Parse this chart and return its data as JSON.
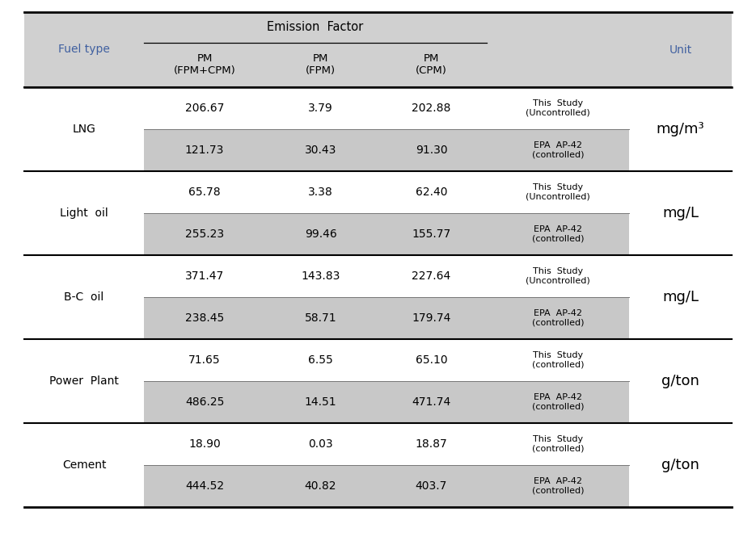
{
  "title": "Emission Factor",
  "rows": [
    {
      "fuel": "LNG",
      "unit": "mg/m³",
      "row1": [
        "206.67",
        "3.79",
        "202.88",
        "This  Study\n(Uncontrolled)"
      ],
      "row2": [
        "121.73",
        "30.43",
        "91.30",
        "EPA  AP-42\n(controlled)"
      ]
    },
    {
      "fuel": "Light  oil",
      "unit": "mg/L",
      "row1": [
        "65.78",
        "3.38",
        "62.40",
        "This  Study\n(Uncontrolled)"
      ],
      "row2": [
        "255.23",
        "99.46",
        "155.77",
        "EPA  AP-42\n(controlled)"
      ]
    },
    {
      "fuel": "B-C  oil",
      "unit": "mg/L",
      "row1": [
        "371.47",
        "143.83",
        "227.64",
        "This  Study\n(Uncontrolled)"
      ],
      "row2": [
        "238.45",
        "58.71",
        "179.74",
        "EPA  AP-42\n(controlled)"
      ]
    },
    {
      "fuel": "Power  Plant",
      "unit": "g/ton",
      "row1": [
        "71.65",
        "6.55",
        "65.10",
        "This  Study\n(controlled)"
      ],
      "row2": [
        "486.25",
        "14.51",
        "471.74",
        "EPA  AP-42\n(controlled)"
      ]
    },
    {
      "fuel": "Cement",
      "unit": "g/ton",
      "row1": [
        "18.90",
        "0.03",
        "18.87",
        "This  Study\n(controlled)"
      ],
      "row2": [
        "444.52",
        "40.82",
        "403.7",
        "EPA  AP-42\n(controlled)"
      ]
    }
  ],
  "header_bg": "#d0d0d0",
  "shaded_bg": "#c8c8c8",
  "white_bg": "#ffffff",
  "text_color": "#000000",
  "blue_color": "#4060a0",
  "unit_color": "#000000",
  "border_thick": 1.8,
  "border_thin": 0.8,
  "data_fs": 10,
  "header_fs": 10,
  "source_fs": 8,
  "unit_fs": 13
}
